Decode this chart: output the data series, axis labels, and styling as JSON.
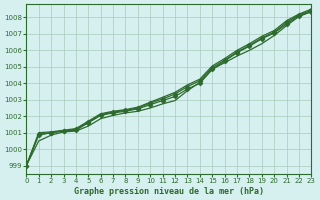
{
  "title": "Graphe pression niveau de la mer (hPa)",
  "bg_color": "#d6f0f0",
  "grid_color": "#aaccbb",
  "line_color": "#2d6a2d",
  "xlim": [
    0,
    23
  ],
  "ylim": [
    998.5,
    1008.8
  ],
  "yticks": [
    999,
    1000,
    1001,
    1002,
    1003,
    1004,
    1005,
    1006,
    1007,
    1008
  ],
  "xticks": [
    0,
    1,
    2,
    3,
    4,
    5,
    6,
    7,
    8,
    9,
    10,
    11,
    12,
    13,
    14,
    15,
    16,
    17,
    18,
    19,
    20,
    21,
    22,
    23
  ],
  "series": [
    {
      "y": [
        999.0,
        1000.5,
        1000.85,
        1001.05,
        1001.1,
        1001.4,
        1001.85,
        1002.05,
        1002.2,
        1002.3,
        1002.5,
        1002.75,
        1002.95,
        1003.55,
        1004.05,
        1004.85,
        1005.25,
        1005.65,
        1006.0,
        1006.4,
        1006.9,
        1007.5,
        1008.05,
        1008.35
      ],
      "marker": null,
      "lw": 0.9
    },
    {
      "y": [
        999.0,
        1000.85,
        1001.0,
        1001.1,
        1001.15,
        1001.6,
        1002.05,
        1002.2,
        1002.3,
        1002.45,
        1002.7,
        1002.95,
        1003.2,
        1003.65,
        1004.0,
        1004.85,
        1005.35,
        1005.85,
        1006.25,
        1006.7,
        1007.05,
        1007.6,
        1008.1,
        1008.35
      ],
      "marker": "D",
      "lw": 0.9
    },
    {
      "y": [
        999.0,
        1000.9,
        1001.0,
        1001.1,
        1001.2,
        1001.65,
        1002.1,
        1002.25,
        1002.35,
        1002.5,
        1002.8,
        1003.05,
        1003.35,
        1003.8,
        1004.15,
        1004.95,
        1005.4,
        1005.9,
        1006.3,
        1006.75,
        1007.1,
        1007.7,
        1008.15,
        1008.42
      ],
      "marker": "D",
      "lw": 0.9
    },
    {
      "y": [
        999.0,
        1001.0,
        1001.05,
        1001.15,
        1001.25,
        1001.7,
        1002.15,
        1002.3,
        1002.4,
        1002.55,
        1002.85,
        1003.15,
        1003.45,
        1003.9,
        1004.25,
        1005.05,
        1005.5,
        1006.0,
        1006.4,
        1006.85,
        1007.2,
        1007.8,
        1008.2,
        1008.5
      ],
      "marker": null,
      "lw": 0.9
    }
  ],
  "marker_size": 2.5,
  "title_fontsize": 6,
  "tick_fontsize": 5
}
